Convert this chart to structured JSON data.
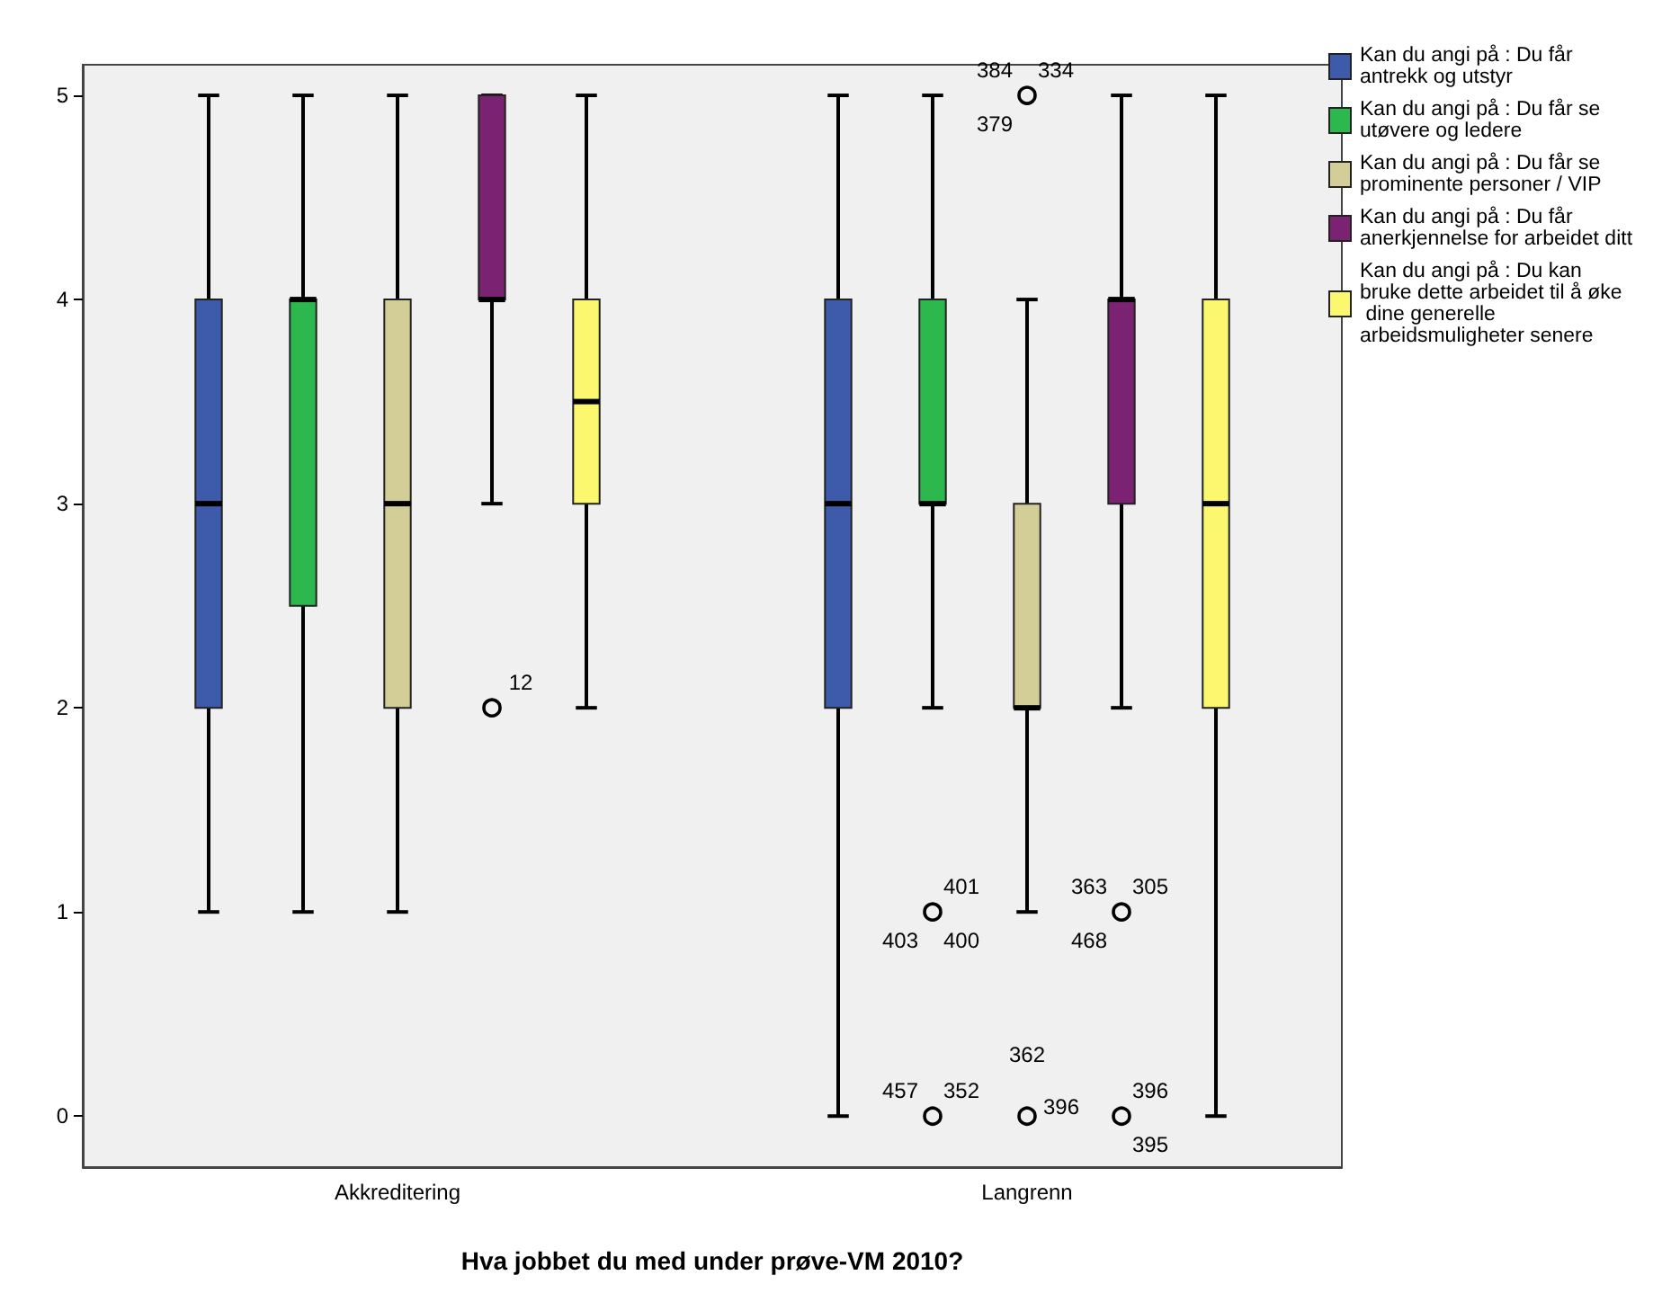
{
  "chart_data": {
    "type": "box",
    "xlabel": "Hva jobbet du med under prøve-VM 2010?",
    "categories": [
      "Akkreditering",
      "Langrenn"
    ],
    "ylim": [
      -0.25,
      5.15
    ],
    "yticks": [
      0,
      1,
      2,
      3,
      4,
      5
    ],
    "legend": "top right",
    "series": [
      {
        "name": "Kan du angi på : Du får antrekk og utstyr",
        "color": "#3e5bab",
        "boxes": [
          {
            "low": 1,
            "q1": 2,
            "median": 3,
            "q3": 4,
            "high": 5
          },
          {
            "low": 0,
            "q1": 2,
            "median": 3,
            "q3": 4,
            "high": 5
          }
        ]
      },
      {
        "name": "Kan du angi på : Du får se utøvere og ledere",
        "color": "#2db84d",
        "boxes": [
          {
            "low": 1,
            "q1": 2.5,
            "median": 4,
            "q3": 4,
            "high": 5
          },
          {
            "low": 2,
            "q1": 3,
            "median": 3,
            "q3": 4,
            "high": 5,
            "outliers": [
              1,
              0
            ]
          }
        ]
      },
      {
        "name": "Kan du angi på : Du får se prominente personer / VIP",
        "color": "#d3ce97",
        "boxes": [
          {
            "low": 1,
            "q1": 2,
            "median": 3,
            "q3": 4,
            "high": 5
          },
          {
            "low": 1,
            "q1": 2,
            "median": 2,
            "q3": 3,
            "high": 4,
            "outliers": [
              5,
              0
            ]
          }
        ]
      },
      {
        "name": "Kan du angi på : Du får anerkjennelse for arbeidet ditt",
        "color": "#7b2272",
        "boxes": [
          {
            "low": 3,
            "q1": 4,
            "median": 4,
            "q3": 5,
            "high": 5,
            "outliers": [
              2
            ]
          },
          {
            "low": 2,
            "q1": 3,
            "median": 4,
            "q3": 4,
            "high": 5,
            "outliers": [
              1,
              0
            ]
          }
        ]
      },
      {
        "name": "Kan du angi på : Du kan bruke dette arbeidet til å øke dine generelle arbeidsmuligheter senere",
        "color": "#fbf870",
        "boxes": [
          {
            "low": 2,
            "q1": 3,
            "median": 3.5,
            "q3": 4,
            "high": 5
          },
          {
            "low": 0,
            "q1": 2,
            "median": 3,
            "q3": 4,
            "high": 5
          }
        ]
      }
    ],
    "annotations": [
      "12",
      "334",
      "384",
      "379",
      "401",
      "403",
      "400",
      "305",
      "363",
      "468",
      "352",
      "457",
      "396",
      "362",
      "396",
      "395"
    ]
  }
}
